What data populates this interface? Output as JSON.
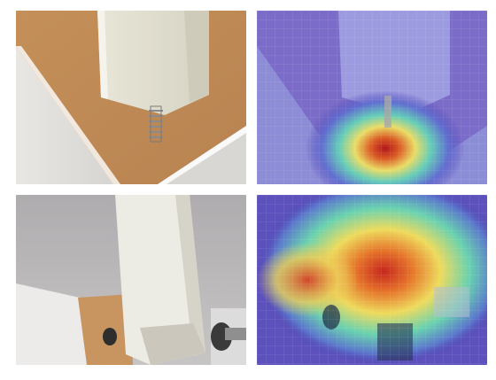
{
  "figure": {
    "panels": [
      {
        "name": "photo-top-left",
        "kind": "photo"
      },
      {
        "name": "heatmap-top-right",
        "kind": "heatmap"
      },
      {
        "name": "photo-bottom-left",
        "kind": "photo"
      },
      {
        "name": "heatmap-bottom-right",
        "kind": "heatmap"
      }
    ],
    "colors": {
      "cardboard": "#c8955f",
      "white_board": "#f1f0ec",
      "gray_background": "#b9b7bb",
      "heatmap_cold": "#4a3fb5",
      "heatmap_warm": "#f1e35a",
      "heatmap_hot": "#c8221b"
    }
  }
}
